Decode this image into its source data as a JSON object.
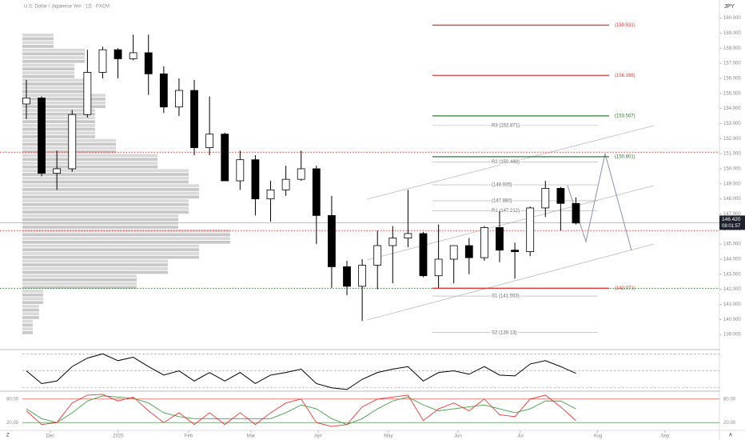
{
  "chart_data": {
    "type": "candlestick",
    "title": "U.S. Dollar / Japanese Yen · 1D · FXCM",
    "currency": "JPY",
    "candles": {
      "open": [
        154.3,
        154.7,
        149.7,
        150.0,
        153.6,
        156.4,
        157.9,
        157.3,
        157.7,
        156.3,
        154.1,
        155.2,
        151.4,
        152.3,
        149.2,
        150.6,
        148.0,
        148.6,
        149.3,
        150.0,
        146.9,
        143.5,
        142.2,
        143.6,
        144.9,
        145.4,
        145.7,
        142.9,
        144.0,
        144.9,
        144.1,
        146.1,
        144.6,
        144.5,
        147.4,
        148.7,
        147.7
      ],
      "high": [
        155.9,
        154.8,
        151.2,
        153.9,
        157.9,
        158.1,
        158.0,
        158.9,
        158.9,
        156.8,
        156.0,
        155.9,
        154.8,
        152.4,
        151.2,
        150.9,
        149.2,
        150.2,
        151.2,
        150.2,
        148.2,
        143.9,
        144.0,
        145.9,
        146.2,
        148.6,
        145.8,
        146.3,
        144.9,
        145.4,
        146.2,
        147.2,
        145.1,
        147.5,
        149.2,
        148.8,
        148.1
      ],
      "low": [
        153.3,
        149.5,
        148.6,
        149.8,
        153.4,
        156.0,
        156.0,
        157.2,
        154.9,
        153.7,
        153.5,
        150.9,
        150.9,
        149.3,
        148.6,
        146.9,
        146.5,
        148.2,
        149.2,
        145.0,
        142.1,
        141.6,
        139.9,
        142.0,
        142.4,
        144.8,
        142.8,
        142.1,
        142.4,
        143.0,
        143.9,
        143.8,
        142.7,
        144.2,
        146.8,
        145.9,
        146.3
      ],
      "close": [
        154.7,
        149.7,
        150.0,
        153.6,
        156.4,
        157.9,
        157.3,
        157.7,
        156.3,
        154.1,
        155.2,
        151.4,
        152.3,
        149.2,
        150.6,
        148.0,
        148.6,
        149.3,
        150.0,
        146.9,
        143.5,
        142.2,
        143.6,
        144.9,
        145.4,
        145.7,
        142.9,
        144.0,
        144.9,
        144.1,
        146.1,
        144.6,
        144.5,
        147.4,
        148.7,
        147.7,
        146.4
      ]
    },
    "ylim": [
      138,
      161.2
    ],
    "yticks": [
      {
        "value": 139,
        "label": "139.000"
      },
      {
        "value": 140,
        "label": "140.000"
      },
      {
        "value": 141,
        "label": "141.000"
      },
      {
        "value": 142,
        "label": "142.000"
      },
      {
        "value": 143,
        "label": "143.000"
      },
      {
        "value": 144,
        "label": "144.000"
      },
      {
        "value": 145,
        "label": "145.000"
      },
      {
        "value": 146,
        "label": "146.000"
      },
      {
        "value": 147,
        "label": "147.000"
      },
      {
        "value": 148,
        "label": "148.000"
      },
      {
        "value": 149,
        "label": "149.000"
      },
      {
        "value": 150,
        "label": "150.000"
      },
      {
        "value": 151,
        "label": "151.000"
      },
      {
        "value": 152,
        "label": "152.000"
      },
      {
        "value": 153,
        "label": "153.000"
      },
      {
        "value": 154,
        "label": "154.000"
      },
      {
        "value": 155,
        "label": "155.000"
      },
      {
        "value": 156,
        "label": "156.000"
      },
      {
        "value": 157,
        "label": "157.000"
      },
      {
        "value": 158,
        "label": "158.000"
      },
      {
        "value": 159,
        "label": "159.000"
      },
      {
        "value": 160,
        "label": "160.000"
      }
    ],
    "xlim": [
      -0.26,
      45.4
    ],
    "xticks": [
      {
        "value": 1.57,
        "label": "Dec"
      },
      {
        "value": 6.02,
        "label": "2025"
      },
      {
        "value": 10.63,
        "label": "Feb"
      },
      {
        "value": 14.71,
        "label": "Mar"
      },
      {
        "value": 19.11,
        "label": "Apr"
      },
      {
        "value": 23.72,
        "label": "May"
      },
      {
        "value": 28.27,
        "label": "Jun"
      },
      {
        "value": 32.36,
        "label": "Jul"
      },
      {
        "value": 37.43,
        "label": "Aug"
      },
      {
        "value": 41.83,
        "label": "Sep"
      }
    ],
    "last_price": {
      "value": 146.42,
      "label": "146.420"
    },
    "countdown": "08:01:57",
    "levels": [
      {
        "value": 159.531,
        "label": "(159.531)",
        "color": "#e53935"
      },
      {
        "value": 156.198,
        "label": "(156.198)",
        "color": "#e53935"
      },
      {
        "value": 153.507,
        "label": "(153.507)",
        "color": "#2e7d32"
      },
      {
        "value": 150.801,
        "label": "(150.801)",
        "color": "#2e7d32"
      },
      {
        "value": 142.071,
        "label": "(142.071)",
        "color": "#e53935"
      }
    ],
    "pivots": [
      {
        "value": 152.871,
        "label": "R3 (152.871)"
      },
      {
        "value": 150.448,
        "label": "R2 (150.448)"
      },
      {
        "value": 148.935,
        "label": "(148.935)"
      },
      {
        "value": 147.88,
        "label": "(147.880)"
      },
      {
        "value": 147.212,
        "label": "R1 (147.212)"
      },
      {
        "value": 141.553,
        "label": "S1 (141.553)"
      },
      {
        "value": 139.13,
        "label": "S2 (139.13)"
      }
    ],
    "dotted_lines": [
      {
        "value": 151.1,
        "color": "#e53935"
      },
      {
        "value": 145.9,
        "color": "#e53935"
      },
      {
        "value": 142.07,
        "color": "#2e7d32"
      }
    ],
    "volume_profile": {
      "prices": [
        139.5,
        140.5,
        141.5,
        142.5,
        143.5,
        144.5,
        145.5,
        146.5,
        147.5,
        148.5,
        149.5,
        150.5,
        151.5,
        152.5,
        153.5,
        154.5,
        155.5,
        156.5,
        157.5,
        158.5
      ],
      "volumes": [
        5,
        8,
        10,
        55,
        70,
        85,
        100,
        75,
        80,
        85,
        80,
        65,
        45,
        35,
        35,
        40,
        30,
        25,
        30,
        15
      ]
    },
    "rsi": {
      "ylim": [
        26,
        75
      ],
      "levels": [
        70,
        50,
        30
      ],
      "values": [
        50,
        35,
        38,
        55,
        65,
        70,
        62,
        66,
        55,
        45,
        50,
        38,
        48,
        38,
        48,
        35,
        45,
        48,
        52,
        35,
        30,
        28,
        40,
        48,
        52,
        55,
        38,
        48,
        50,
        46,
        55,
        45,
        44,
        58,
        62,
        55,
        47
      ]
    },
    "stoch": {
      "ylim": [
        0,
        100
      ],
      "yticks": [
        {
          "value": 80,
          "label": "80.00"
        },
        {
          "value": 20,
          "label": "20.00"
        }
      ],
      "k": [
        50,
        15,
        20,
        70,
        90,
        92,
        75,
        85,
        50,
        20,
        45,
        15,
        45,
        15,
        45,
        15,
        45,
        70,
        80,
        20,
        10,
        15,
        60,
        80,
        85,
        90,
        25,
        55,
        70,
        50,
        80,
        40,
        35,
        80,
        90,
        60,
        25
      ],
      "d": [
        55,
        30,
        20,
        45,
        75,
        88,
        85,
        82,
        70,
        45,
        35,
        30,
        30,
        30,
        30,
        30,
        30,
        45,
        65,
        55,
        30,
        15,
        30,
        55,
        75,
        85,
        65,
        50,
        55,
        60,
        65,
        55,
        45,
        55,
        75,
        75,
        55
      ]
    }
  }
}
